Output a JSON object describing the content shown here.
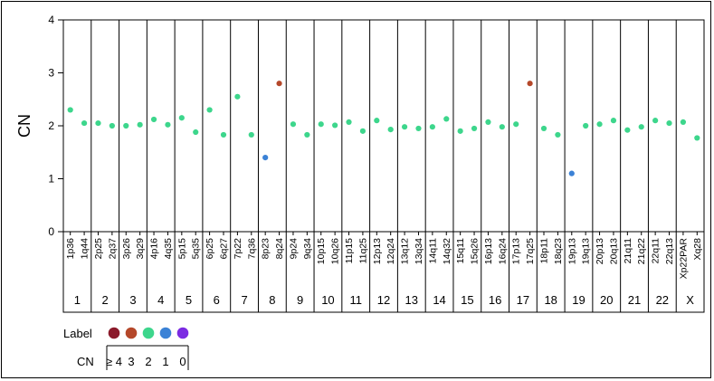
{
  "chart_data": {
    "type": "scatter",
    "title": "",
    "xlabel": "",
    "ylabel": "CN",
    "ylim": [
      0,
      4
    ],
    "yticks": [
      0,
      1,
      2,
      3,
      4
    ],
    "grid": false,
    "chromosomes": [
      {
        "name": "1",
        "arms": [
          "1p36",
          "1q44"
        ]
      },
      {
        "name": "2",
        "arms": [
          "2p25",
          "2q37"
        ]
      },
      {
        "name": "3",
        "arms": [
          "3p26",
          "3q29"
        ]
      },
      {
        "name": "4",
        "arms": [
          "4p16",
          "4q35"
        ]
      },
      {
        "name": "5",
        "arms": [
          "5p15",
          "5q35"
        ]
      },
      {
        "name": "6",
        "arms": [
          "6p25",
          "6q27"
        ]
      },
      {
        "name": "7",
        "arms": [
          "7p22",
          "7q36"
        ]
      },
      {
        "name": "8",
        "arms": [
          "8p23",
          "8q24"
        ]
      },
      {
        "name": "9",
        "arms": [
          "9p24",
          "9q34"
        ]
      },
      {
        "name": "10",
        "arms": [
          "10p15",
          "10q26"
        ]
      },
      {
        "name": "11",
        "arms": [
          "11p15",
          "11q25"
        ]
      },
      {
        "name": "12",
        "arms": [
          "12p13",
          "12q24"
        ]
      },
      {
        "name": "13",
        "arms": [
          "13q12",
          "13q34"
        ]
      },
      {
        "name": "14",
        "arms": [
          "14q11",
          "14q32"
        ]
      },
      {
        "name": "15",
        "arms": [
          "15q11",
          "15q26"
        ]
      },
      {
        "name": "16",
        "arms": [
          "16p13",
          "16q24"
        ]
      },
      {
        "name": "17",
        "arms": [
          "17p13",
          "17q25"
        ]
      },
      {
        "name": "18",
        "arms": [
          "18p11",
          "18q23"
        ]
      },
      {
        "name": "19",
        "arms": [
          "19p13",
          "19q13"
        ]
      },
      {
        "name": "20",
        "arms": [
          "20p13",
          "20q13"
        ]
      },
      {
        "name": "21",
        "arms": [
          "21q11",
          "21q22"
        ]
      },
      {
        "name": "22",
        "arms": [
          "22q11",
          "22q13"
        ]
      },
      {
        "name": "X",
        "arms": [
          "Xp22PAR",
          "Xq28"
        ]
      }
    ],
    "points": [
      {
        "x": "1p36",
        "y": 2.3,
        "cn_class": "2"
      },
      {
        "x": "1q44",
        "y": 2.05,
        "cn_class": "2"
      },
      {
        "x": "2p25",
        "y": 2.05,
        "cn_class": "2"
      },
      {
        "x": "2q37",
        "y": 2.0,
        "cn_class": "2"
      },
      {
        "x": "3p26",
        "y": 2.0,
        "cn_class": "2"
      },
      {
        "x": "3q29",
        "y": 2.02,
        "cn_class": "2"
      },
      {
        "x": "4p16",
        "y": 2.12,
        "cn_class": "2"
      },
      {
        "x": "4q35",
        "y": 2.02,
        "cn_class": "2"
      },
      {
        "x": "5p15",
        "y": 2.15,
        "cn_class": "2"
      },
      {
        "x": "5q35",
        "y": 1.88,
        "cn_class": "2"
      },
      {
        "x": "6p25",
        "y": 2.3,
        "cn_class": "2"
      },
      {
        "x": "6q27",
        "y": 1.83,
        "cn_class": "2"
      },
      {
        "x": "7p22",
        "y": 2.55,
        "cn_class": "2"
      },
      {
        "x": "7q36",
        "y": 1.83,
        "cn_class": "2"
      },
      {
        "x": "8p23",
        "y": 1.4,
        "cn_class": "1"
      },
      {
        "x": "8q24",
        "y": 2.8,
        "cn_class": "3"
      },
      {
        "x": "9p24",
        "y": 2.03,
        "cn_class": "2"
      },
      {
        "x": "9q34",
        "y": 1.83,
        "cn_class": "2"
      },
      {
        "x": "10p15",
        "y": 2.03,
        "cn_class": "2"
      },
      {
        "x": "10q26",
        "y": 2.01,
        "cn_class": "2"
      },
      {
        "x": "11p15",
        "y": 2.07,
        "cn_class": "2"
      },
      {
        "x": "11q25",
        "y": 1.9,
        "cn_class": "2"
      },
      {
        "x": "12p13",
        "y": 2.1,
        "cn_class": "2"
      },
      {
        "x": "12q24",
        "y": 1.93,
        "cn_class": "2"
      },
      {
        "x": "13q12",
        "y": 1.98,
        "cn_class": "2"
      },
      {
        "x": "13q34",
        "y": 1.95,
        "cn_class": "2"
      },
      {
        "x": "14q11",
        "y": 1.98,
        "cn_class": "2"
      },
      {
        "x": "14q32",
        "y": 2.13,
        "cn_class": "2"
      },
      {
        "x": "15q11",
        "y": 1.9,
        "cn_class": "2"
      },
      {
        "x": "15q26",
        "y": 1.95,
        "cn_class": "2"
      },
      {
        "x": "16p13",
        "y": 2.07,
        "cn_class": "2"
      },
      {
        "x": "16q24",
        "y": 1.98,
        "cn_class": "2"
      },
      {
        "x": "17p13",
        "y": 2.03,
        "cn_class": "2"
      },
      {
        "x": "17q25",
        "y": 2.8,
        "cn_class": "3"
      },
      {
        "x": "18p11",
        "y": 1.95,
        "cn_class": "2"
      },
      {
        "x": "18q23",
        "y": 1.83,
        "cn_class": "2"
      },
      {
        "x": "19p13",
        "y": 1.1,
        "cn_class": "1"
      },
      {
        "x": "19q13",
        "y": 2.0,
        "cn_class": "2"
      },
      {
        "x": "20p13",
        "y": 2.03,
        "cn_class": "2"
      },
      {
        "x": "20q13",
        "y": 2.1,
        "cn_class": "2"
      },
      {
        "x": "21q11",
        "y": 1.92,
        "cn_class": "2"
      },
      {
        "x": "21q22",
        "y": 1.98,
        "cn_class": "2"
      },
      {
        "x": "22q11",
        "y": 2.1,
        "cn_class": "2"
      },
      {
        "x": "22q13",
        "y": 2.05,
        "cn_class": "2"
      },
      {
        "x": "Xp22PAR",
        "y": 2.07,
        "cn_class": "2"
      },
      {
        "x": "Xq28",
        "y": 1.77,
        "cn_class": "2"
      }
    ],
    "legend": {
      "title": "Label",
      "cn_title": "CN",
      "placement": "bottom-left",
      "items": [
        {
          "label": "≥ 4",
          "key": "4",
          "color": "#8B1A2B"
        },
        {
          "label": "3",
          "key": "3",
          "color": "#B5482A"
        },
        {
          "label": "2",
          "key": "2",
          "color": "#3DD68C"
        },
        {
          "label": "1",
          "key": "1",
          "color": "#3B82D6"
        },
        {
          "label": "0",
          "key": "0",
          "color": "#7B2BE2"
        }
      ]
    }
  }
}
